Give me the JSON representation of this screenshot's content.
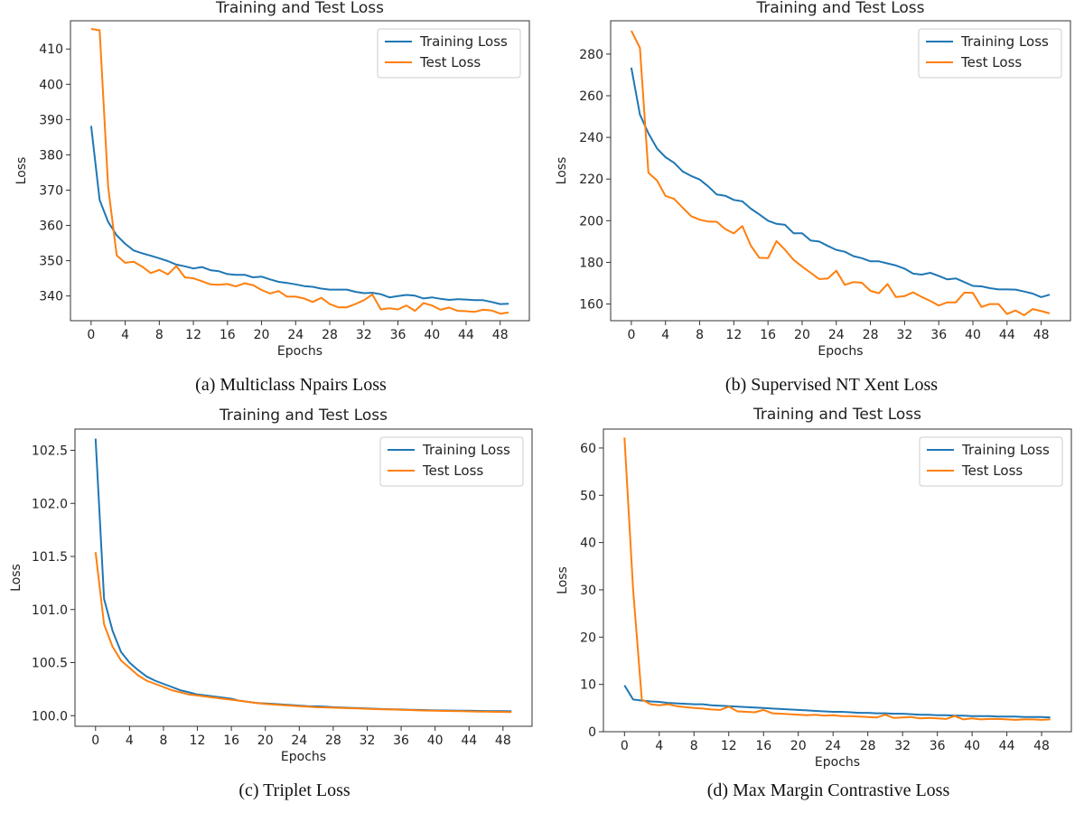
{
  "colors": {
    "training": "#1f77b4",
    "test": "#ff7f0e"
  },
  "chart_data": [
    {
      "type": "line",
      "title": "Training and Test Loss",
      "caption": "(a) Multiclass Npairs Loss",
      "xlabel": "Epochs",
      "ylabel": "Loss",
      "xlim": [
        0,
        49
      ],
      "ylim": [
        333,
        418
      ],
      "xticks": [
        0,
        4,
        8,
        12,
        16,
        20,
        24,
        28,
        32,
        36,
        40,
        44,
        48
      ],
      "yticks": [
        340,
        350,
        360,
        370,
        380,
        390,
        400,
        410
      ],
      "legend": "top-right",
      "series": [
        {
          "name": "Training Loss",
          "values": [
            388.2,
            367.2,
            361.0,
            357.2,
            354.8,
            352.9,
            352.1,
            351.4,
            350.7,
            349.9,
            348.9,
            348.4,
            347.8,
            348.2,
            347.3,
            347.0,
            346.2,
            346.0,
            346.0,
            345.3,
            345.5,
            344.7,
            344.0,
            343.7,
            343.3,
            342.8,
            342.6,
            342.1,
            341.8,
            341.8,
            341.8,
            341.2,
            340.8,
            340.9,
            340.5,
            339.6,
            340.0,
            340.3,
            340.1,
            339.3,
            339.6,
            339.2,
            338.9,
            339.1,
            339.0,
            338.8,
            338.8,
            338.3,
            337.7,
            337.8
          ]
        },
        {
          "name": "Test Loss",
          "values": [
            415.7,
            415.3,
            371.0,
            351.5,
            349.4,
            349.7,
            348.3,
            346.5,
            347.4,
            346.1,
            348.5,
            345.3,
            345.0,
            344.2,
            343.3,
            343.2,
            343.4,
            342.7,
            343.6,
            343.1,
            341.7,
            340.7,
            341.4,
            339.8,
            339.8,
            339.3,
            338.3,
            339.5,
            337.7,
            336.8,
            336.8,
            337.7,
            338.8,
            340.4,
            336.2,
            336.5,
            336.2,
            337.3,
            335.8,
            338.0,
            337.3,
            336.1,
            336.7,
            335.8,
            335.7,
            335.5,
            336.1,
            335.9,
            335.0,
            335.3
          ]
        }
      ]
    },
    {
      "type": "line",
      "title": "Training and Test Loss",
      "caption": "(b) Supervised NT Xent Loss",
      "xlabel": "Epochs",
      "ylabel": "Loss",
      "xlim": [
        0,
        49
      ],
      "ylim": [
        152,
        296
      ],
      "xticks": [
        0,
        4,
        8,
        12,
        16,
        20,
        24,
        28,
        32,
        36,
        40,
        44,
        48
      ],
      "yticks": [
        160,
        180,
        200,
        220,
        240,
        260,
        280
      ],
      "legend": "top-right",
      "series": [
        {
          "name": "Training Loss",
          "values": [
            273.5,
            251.0,
            242.0,
            234.7,
            230.5,
            227.8,
            223.7,
            221.5,
            219.8,
            216.5,
            212.6,
            212.0,
            210.0,
            209.3,
            205.8,
            203.0,
            200.0,
            198.5,
            198.0,
            194.0,
            194.0,
            190.5,
            190.0,
            187.9,
            186.0,
            185.1,
            183.0,
            182.0,
            180.5,
            180.5,
            179.5,
            178.5,
            177.0,
            174.6,
            174.1,
            175.0,
            173.5,
            171.8,
            172.3,
            170.5,
            168.7,
            168.5,
            167.6,
            167.0,
            167.0,
            166.9,
            166.0,
            165.0,
            163.3,
            164.5
          ]
        },
        {
          "name": "Test Loss",
          "values": [
            291.2,
            283.0,
            223.0,
            219.3,
            211.9,
            210.5,
            206.3,
            202.2,
            200.5,
            199.6,
            199.5,
            196.0,
            193.9,
            197.4,
            188.0,
            182.2,
            182.0,
            190.2,
            186.0,
            181.2,
            178.0,
            175.0,
            172.0,
            172.2,
            176.0,
            169.2,
            170.5,
            170.2,
            166.3,
            165.2,
            169.6,
            163.3,
            163.8,
            165.6,
            163.4,
            161.5,
            159.3,
            160.8,
            160.8,
            165.5,
            165.3,
            158.6,
            160.0,
            160.0,
            155.2,
            156.9,
            154.6,
            157.6,
            156.6,
            155.5
          ]
        }
      ]
    },
    {
      "type": "line",
      "title": "Training and Test Loss",
      "caption": "(c) Triplet Loss",
      "xlabel": "Epochs",
      "ylabel": "Loss",
      "xlim": [
        0,
        49
      ],
      "ylim": [
        99.9,
        102.7
      ],
      "xticks": [
        0,
        4,
        8,
        12,
        16,
        20,
        24,
        28,
        32,
        36,
        40,
        44,
        48
      ],
      "yticks": [
        100.0,
        100.5,
        101.0,
        101.5,
        102.0,
        102.5
      ],
      "legend": "top-right",
      "series": [
        {
          "name": "Training Loss",
          "values": [
            102.61,
            101.1,
            100.8,
            100.6,
            100.5,
            100.43,
            100.37,
            100.33,
            100.3,
            100.27,
            100.24,
            100.22,
            100.2,
            100.19,
            100.18,
            100.17,
            100.16,
            100.14,
            100.13,
            100.12,
            100.115,
            100.11,
            100.105,
            100.1,
            100.095,
            100.09,
            100.088,
            100.085,
            100.08,
            100.077,
            100.074,
            100.071,
            100.068,
            100.065,
            100.062,
            100.06,
            100.058,
            100.056,
            100.054,
            100.052,
            100.05,
            100.049,
            100.048,
            100.047,
            100.046,
            100.045,
            100.044,
            100.043,
            100.042,
            100.041
          ]
        },
        {
          "name": "Test Loss",
          "values": [
            101.54,
            100.86,
            100.65,
            100.52,
            100.45,
            100.38,
            100.33,
            100.3,
            100.27,
            100.24,
            100.22,
            100.2,
            100.19,
            100.18,
            100.17,
            100.16,
            100.15,
            100.14,
            100.13,
            100.12,
            100.11,
            100.105,
            100.1,
            100.095,
            100.09,
            100.085,
            100.08,
            100.078,
            100.075,
            100.072,
            100.07,
            100.068,
            100.065,
            100.062,
            100.06,
            100.058,
            100.055,
            100.053,
            100.05,
            100.048,
            100.046,
            100.045,
            100.044,
            100.042,
            100.04,
            100.039,
            100.038,
            100.036,
            100.035,
            100.034
          ]
        }
      ]
    },
    {
      "type": "line",
      "title": "Training and Test Loss",
      "caption": "(d) Max Margin Contrastive Loss",
      "xlabel": "Epochs",
      "ylabel": "Loss",
      "xlim": [
        0,
        49
      ],
      "ylim": [
        0,
        64
      ],
      "xticks": [
        0,
        4,
        8,
        12,
        16,
        20,
        24,
        28,
        32,
        36,
        40,
        44,
        48
      ],
      "yticks": [
        0,
        10,
        20,
        30,
        40,
        50,
        60
      ],
      "legend": "top-right",
      "series": [
        {
          "name": "Training Loss",
          "values": [
            9.8,
            6.8,
            6.6,
            6.4,
            6.3,
            6.1,
            6.0,
            5.9,
            5.8,
            5.8,
            5.6,
            5.5,
            5.4,
            5.3,
            5.2,
            5.1,
            5.0,
            4.9,
            4.8,
            4.7,
            4.6,
            4.5,
            4.4,
            4.3,
            4.2,
            4.2,
            4.1,
            4.0,
            4.0,
            3.9,
            3.9,
            3.8,
            3.8,
            3.7,
            3.6,
            3.6,
            3.5,
            3.5,
            3.4,
            3.4,
            3.3,
            3.3,
            3.3,
            3.2,
            3.2,
            3.2,
            3.1,
            3.1,
            3.1,
            3.0
          ]
        },
        {
          "name": "Test Loss",
          "values": [
            62.2,
            30.0,
            6.8,
            5.8,
            5.6,
            5.8,
            5.4,
            5.2,
            5.0,
            4.9,
            4.7,
            4.6,
            5.3,
            4.3,
            4.2,
            4.1,
            4.6,
            3.9,
            3.8,
            3.7,
            3.6,
            3.5,
            3.6,
            3.4,
            3.5,
            3.3,
            3.3,
            3.2,
            3.1,
            3.0,
            3.6,
            2.9,
            3.0,
            3.1,
            2.8,
            2.9,
            2.8,
            2.7,
            3.3,
            2.6,
            2.8,
            2.6,
            2.7,
            2.7,
            2.6,
            2.5,
            2.6,
            2.6,
            2.5,
            2.6
          ]
        }
      ]
    }
  ]
}
